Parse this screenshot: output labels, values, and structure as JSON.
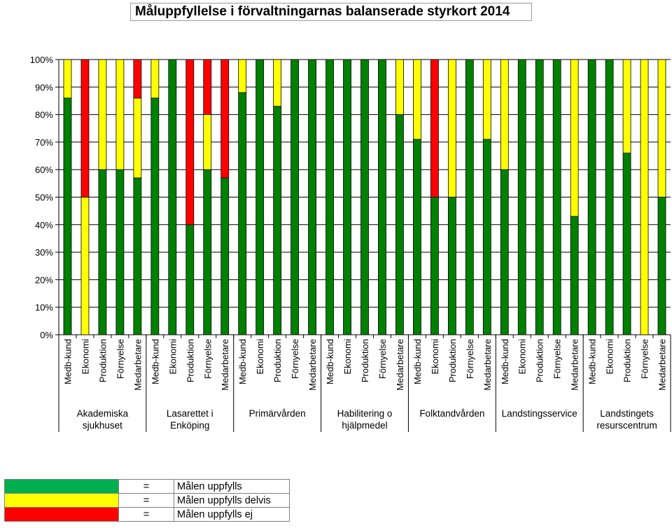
{
  "title": "Måluppfyllelse i förvaltningarnas balanserade styrkort 2014",
  "colors": {
    "green": "#008000",
    "yellow": "#ffff00",
    "red": "#ff0000"
  },
  "legend": [
    {
      "color": "#00b050",
      "eq": "=",
      "label": "Målen uppfylls"
    },
    {
      "color": "#ffff00",
      "eq": "=",
      "label": "Målen uppfylls delvis"
    },
    {
      "color": "#ff0000",
      "eq": "=",
      "label": "Målen uppfylls ej"
    }
  ],
  "chart_data": {
    "type": "bar",
    "stacked": true,
    "ylim": [
      0,
      100
    ],
    "yticks": [
      "0%",
      "10%",
      "20%",
      "30%",
      "40%",
      "50%",
      "60%",
      "70%",
      "80%",
      "90%",
      "100%"
    ],
    "grid": true,
    "groups": [
      {
        "label": [
          "Akademiska",
          "sjukhuset"
        ],
        "bars": [
          {
            "label": "Medb-kund",
            "green": 86,
            "yellow": 14,
            "red": 0
          },
          {
            "label": "Ekonomi",
            "green": 0,
            "yellow": 50,
            "red": 50
          },
          {
            "label": "Produktion",
            "green": 60,
            "yellow": 40,
            "red": 0
          },
          {
            "label": "Förnyelse",
            "green": 60,
            "yellow": 40,
            "red": 0
          },
          {
            "label": "Medarbetare",
            "green": 57,
            "yellow": 29,
            "red": 14
          }
        ]
      },
      {
        "label": [
          "Lasarettet i",
          "Enköping"
        ],
        "bars": [
          {
            "label": "Medb-kund",
            "green": 86,
            "yellow": 14,
            "red": 0
          },
          {
            "label": "Ekonomi",
            "green": 100,
            "yellow": 0,
            "red": 0
          },
          {
            "label": "Produktion",
            "green": 40,
            "yellow": 0,
            "red": 60
          },
          {
            "label": "Förnyelse",
            "green": 60,
            "yellow": 20,
            "red": 20
          },
          {
            "label": "Medarbetare",
            "green": 57,
            "yellow": 0,
            "red": 43
          }
        ]
      },
      {
        "label": [
          "Primärvården"
        ],
        "bars": [
          {
            "label": "Medb-kund",
            "green": 88,
            "yellow": 12,
            "red": 0
          },
          {
            "label": "Ekonomi",
            "green": 100,
            "yellow": 0,
            "red": 0
          },
          {
            "label": "Produktion",
            "green": 83,
            "yellow": 17,
            "red": 0
          },
          {
            "label": "Förnyelse",
            "green": 100,
            "yellow": 0,
            "red": 0
          },
          {
            "label": "Medarbetare",
            "green": 100,
            "yellow": 0,
            "red": 0
          }
        ]
      },
      {
        "label": [
          "Habilitering o",
          "hjälpmedel"
        ],
        "bars": [
          {
            "label": "Medb-kund",
            "green": 100,
            "yellow": 0,
            "red": 0
          },
          {
            "label": "Ekonomi",
            "green": 100,
            "yellow": 0,
            "red": 0
          },
          {
            "label": "Produktion",
            "green": 100,
            "yellow": 0,
            "red": 0
          },
          {
            "label": "Förnyelse",
            "green": 100,
            "yellow": 0,
            "red": 0
          },
          {
            "label": "Medarbetare",
            "green": 80,
            "yellow": 20,
            "red": 0
          }
        ]
      },
      {
        "label": [
          "Folktandvården"
        ],
        "bars": [
          {
            "label": "Medb-kund",
            "green": 71,
            "yellow": 29,
            "red": 0
          },
          {
            "label": "Ekonomi",
            "green": 50,
            "yellow": 0,
            "red": 50
          },
          {
            "label": "Produktion",
            "green": 50,
            "yellow": 50,
            "red": 0
          },
          {
            "label": "Förnyelse",
            "green": 100,
            "yellow": 0,
            "red": 0
          },
          {
            "label": "Medarbetare",
            "green": 71,
            "yellow": 29,
            "red": 0
          }
        ]
      },
      {
        "label": [
          "Landstingsservice"
        ],
        "bars": [
          {
            "label": "Medb-kund",
            "green": 60,
            "yellow": 40,
            "red": 0
          },
          {
            "label": "Ekonomi",
            "green": 100,
            "yellow": 0,
            "red": 0
          },
          {
            "label": "Produktion",
            "green": 100,
            "yellow": 0,
            "red": 0
          },
          {
            "label": "Förnyelse",
            "green": 100,
            "yellow": 0,
            "red": 0
          },
          {
            "label": "Medarbetare",
            "green": 43,
            "yellow": 57,
            "red": 0
          }
        ]
      },
      {
        "label": [
          "Landstingets",
          "resurscentrum"
        ],
        "bars": [
          {
            "label": "Medb-kund",
            "green": 100,
            "yellow": 0,
            "red": 0
          },
          {
            "label": "Ekonomi",
            "green": 100,
            "yellow": 0,
            "red": 0
          },
          {
            "label": "Produktion",
            "green": 66,
            "yellow": 34,
            "red": 0
          },
          {
            "label": "Förnyelse",
            "green": 0,
            "yellow": 100,
            "red": 0
          },
          {
            "label": "Medarbetare",
            "green": 50,
            "yellow": 50,
            "red": 0
          }
        ]
      }
    ]
  }
}
